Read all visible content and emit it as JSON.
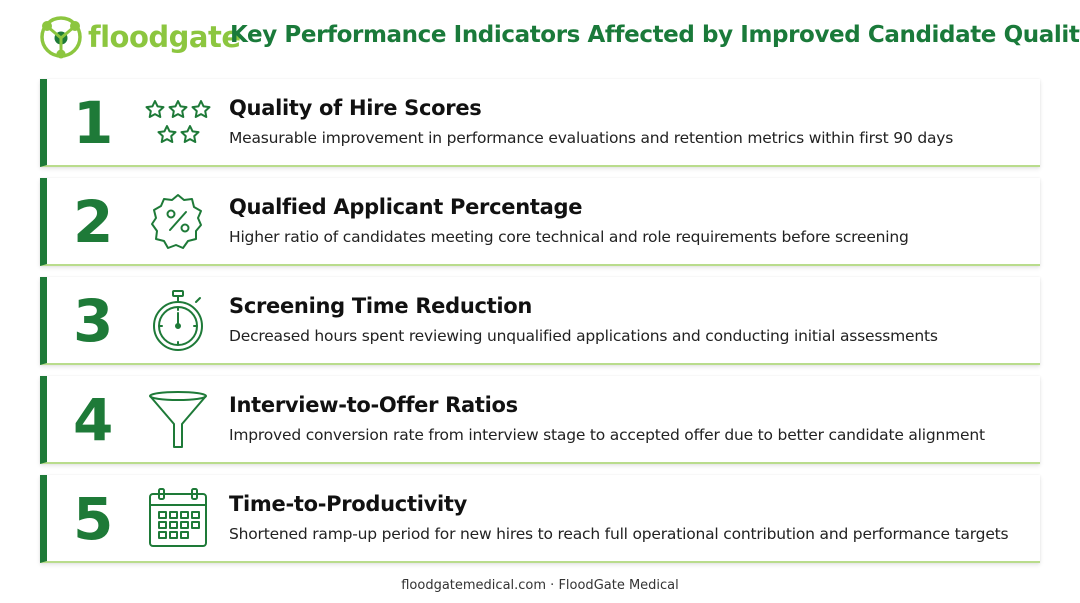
{
  "brand": {
    "name": "floodgate",
    "logo_icon": "network-node-logo-icon",
    "color": "#8cc63f"
  },
  "title": "Key Performance Indicators Affected by Improved Candidate Quality",
  "accent_color": "#1e7a38",
  "kpis": [
    {
      "number": "1",
      "icon": "stars-icon",
      "title": "Quality of Hire Scores",
      "description": "Measurable improvement in performance evaluations and retention metrics within first 90 days"
    },
    {
      "number": "2",
      "icon": "percent-badge-icon",
      "title": "Qualfied Applicant Percentage",
      "description": "Higher ratio of candidates meeting core technical and role requirements before screening"
    },
    {
      "number": "3",
      "icon": "stopwatch-icon",
      "title": "Screening Time Reduction",
      "description": "Decreased hours spent reviewing unqualified applications and conducting initial assessments"
    },
    {
      "number": "4",
      "icon": "funnel-icon",
      "title": "Interview-to-Offer Ratios",
      "description": "Improved conversion rate from interview stage to accepted offer due to better candidate alignment"
    },
    {
      "number": "5",
      "icon": "calendar-icon",
      "title": "Time-to-Productivity",
      "description": "Shortened ramp-up period for new hires to reach full operational contribution and performance targets"
    }
  ],
  "footer": "floodgatemedical.com · FloodGate Medical"
}
